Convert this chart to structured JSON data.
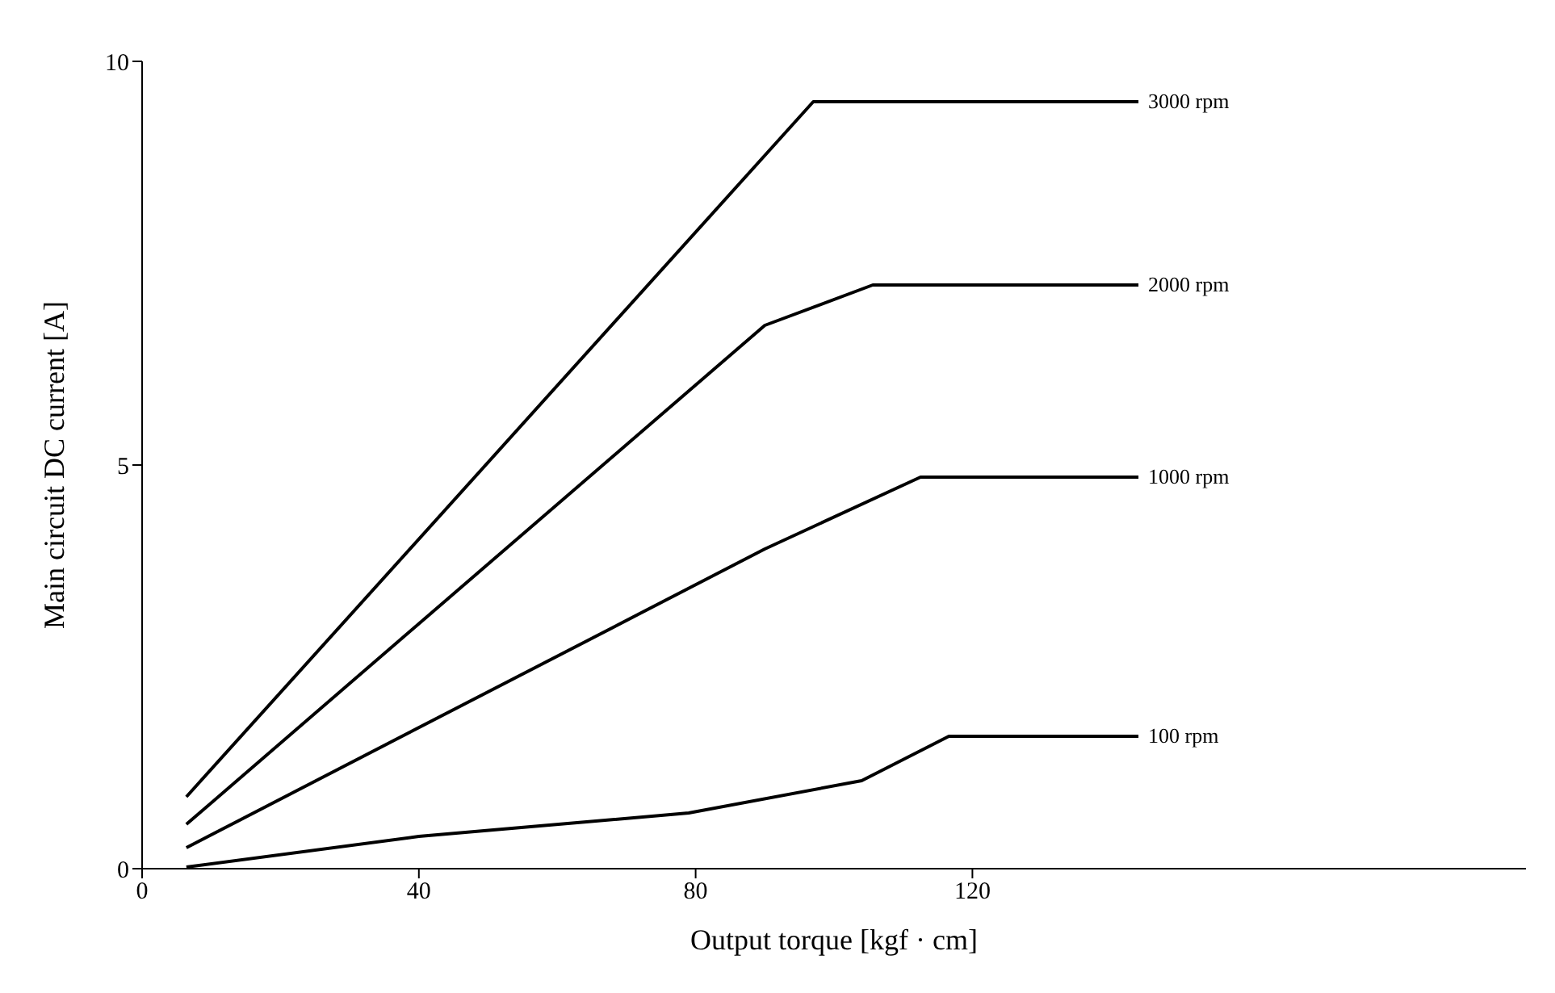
{
  "chart_data": {
    "type": "line",
    "xlabel": "Output torque [kgf · cm]",
    "ylabel": "Main circuit DC current [A]",
    "xlim": [
      0,
      200
    ],
    "xticks": [
      0,
      40,
      80,
      120
    ],
    "ylim": [
      0,
      10
    ],
    "yticks": [
      0,
      5,
      10
    ],
    "grid": false,
    "legend": false,
    "marker": "none",
    "line_style": "solid",
    "series": [
      {
        "name": "3000 rpm",
        "color": "#000000",
        "x": [
          6.4,
          97,
          144
        ],
        "values": [
          0.89,
          9.5,
          9.5
        ]
      },
      {
        "name": "2000 rpm",
        "color": "#000000",
        "x": [
          6.4,
          90,
          105.6,
          144
        ],
        "values": [
          0.55,
          6.73,
          7.23,
          7.23
        ]
      },
      {
        "name": "1000 rpm",
        "color": "#000000",
        "x": [
          6.4,
          90,
          112.5,
          144
        ],
        "values": [
          0.26,
          3.96,
          4.85,
          4.85
        ]
      },
      {
        "name": "100 rpm",
        "color": "#000000",
        "x": [
          6.4,
          40,
          79,
          104,
          116.6,
          144
        ],
        "values": [
          0.02,
          0.4,
          0.69,
          1.09,
          1.64,
          1.64
        ]
      }
    ]
  }
}
